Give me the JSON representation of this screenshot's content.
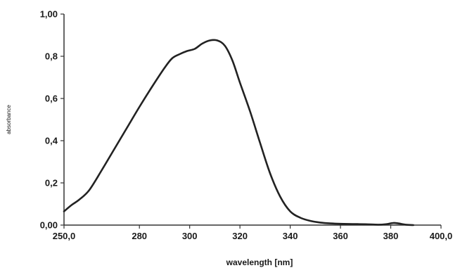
{
  "chart_data": {
    "type": "line",
    "xlabel": "wavelength [nm]",
    "ylabel": "absorbance",
    "xlim": [
      250,
      400
    ],
    "ylim": [
      0,
      1
    ],
    "x_ticks": [
      250,
      280,
      300,
      320,
      340,
      360,
      380,
      400
    ],
    "x_tick_labels": [
      "250,0",
      "280",
      "300",
      "320",
      "340",
      "360",
      "380",
      "400,0"
    ],
    "y_ticks": [
      0,
      0.2,
      0.4,
      0.6,
      0.8,
      1.0
    ],
    "y_tick_labels": [
      "0,00",
      "0,2",
      "0,4",
      "0,6",
      "0,8",
      "1,00"
    ],
    "grid": false,
    "line_color": "#222222",
    "series": [
      {
        "x": [
          250,
          253,
          256,
          260,
          265,
          270,
          275,
          280,
          285,
          290,
          293,
          296,
          299,
          302,
          305,
          308,
          311,
          314,
          317,
          320,
          324,
          328,
          332,
          336,
          340,
          344,
          348,
          352,
          356,
          360,
          365,
          370,
          375,
          378,
          381,
          383,
          386,
          389
        ],
        "y": [
          0.065,
          0.095,
          0.12,
          0.165,
          0.26,
          0.36,
          0.46,
          0.56,
          0.655,
          0.745,
          0.79,
          0.81,
          0.825,
          0.835,
          0.86,
          0.875,
          0.875,
          0.85,
          0.78,
          0.675,
          0.54,
          0.39,
          0.245,
          0.135,
          0.065,
          0.035,
          0.02,
          0.012,
          0.008,
          0.006,
          0.005,
          0.004,
          0.002,
          0.004,
          0.01,
          0.008,
          0.002,
          0.0
        ]
      }
    ]
  }
}
